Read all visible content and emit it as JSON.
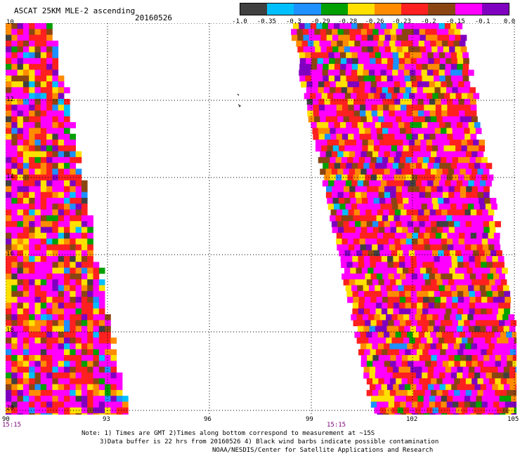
{
  "header": {
    "title": "ASCAT 25KM MLE-2 ascending",
    "date": "20160526"
  },
  "legend": {
    "swatches": [
      "#404040",
      "#00bfff",
      "#1e90ff",
      "#00a000",
      "#ffe000",
      "#ff8c00",
      "#ff2020",
      "#8b4513",
      "#ff00ff",
      "#8000c0"
    ],
    "labels": [
      "-1.0",
      "-0.35",
      "-0.3",
      "-0.29",
      "-0.28",
      "-0.26",
      "-0.23",
      "-0.2",
      "-0.15",
      "-0.1",
      "0.0"
    ]
  },
  "axes": {
    "x_ticks": [
      "90",
      "93",
      "96",
      "99",
      "102",
      "105"
    ],
    "y_ticks": [
      "10",
      "12",
      "14",
      "16",
      "18",
      "20"
    ],
    "times": [
      "15:15",
      "15:15"
    ]
  },
  "notes": {
    "line1": "Note: 1) Times are GMT 2)Times along bottom correspond to measurement at ~15S",
    "line2": "3)Data buffer is 22 hrs from 20160526 4) Black wind barbs indicate possible contamination",
    "line3": "NOAA/NESDIS/Center for Satellite Applications and Research"
  }
}
